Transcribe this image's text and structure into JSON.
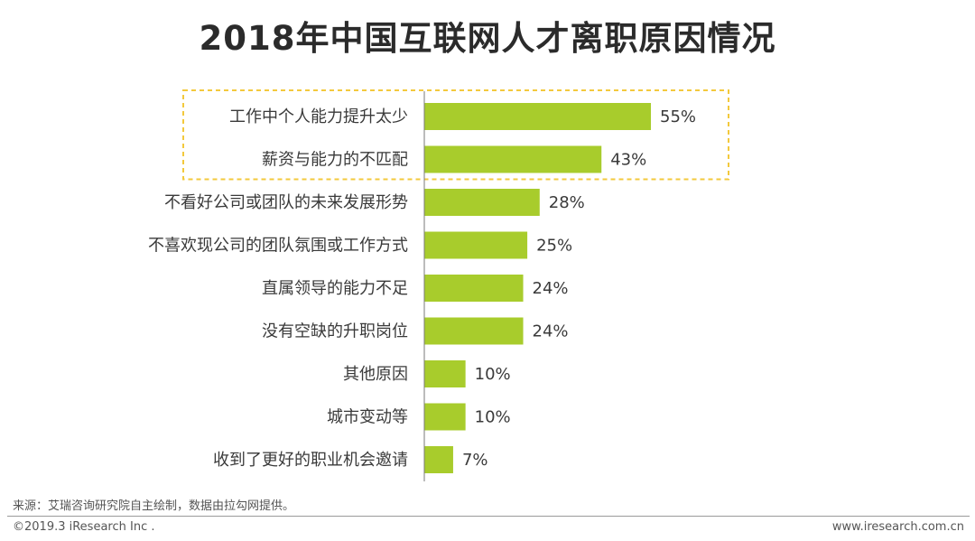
{
  "colors": {
    "bar": "#a8cc2c",
    "highlight": "#f3c93d",
    "axis": "#7a7a7a"
  },
  "footer": {
    "source": "来源：艾瑞咨询研究院自主绘制，数据由拉勾网提供。",
    "copyright": "©2019.3 iResearch Inc .",
    "site": "www.iresearch.com.cn"
  },
  "chart_data": {
    "type": "bar",
    "orientation": "horizontal",
    "title": "2018年中国互联网人才离职原因情况",
    "categories": [
      "工作中个人能力提升太少",
      "薪资与能力的不匹配",
      "不看好公司或团队的未来发展形势",
      "不喜欢现公司的团队氛围或工作方式",
      "直属领导的能力不足",
      "没有空缺的升职岗位",
      "其他原因",
      "城市变动等",
      "收到了更好的职业机会邀请"
    ],
    "values": [
      55,
      43,
      28,
      25,
      24,
      24,
      10,
      10,
      7
    ],
    "value_labels": [
      "55%",
      "43%",
      "28%",
      "25%",
      "24%",
      "24%",
      "10%",
      "10%",
      "7%"
    ],
    "unit": "%",
    "xlim": [
      0,
      55
    ],
    "highlighted_categories": [
      0,
      1
    ],
    "xlabel": "",
    "ylabel": "",
    "grid": false,
    "legend": "none"
  }
}
